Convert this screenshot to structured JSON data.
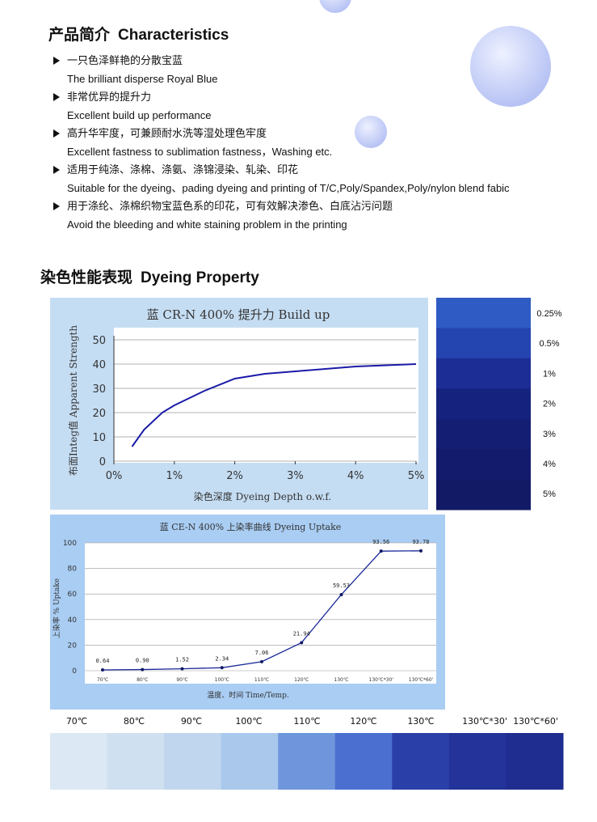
{
  "characteristics": {
    "title": "产品简介",
    "title_en": "Characteristics",
    "items": [
      {
        "cn": "一只色泽鲜艳的分散宝蓝",
        "en": "The brilliant disperse Royal Blue"
      },
      {
        "cn": "非常优异的提升力",
        "en": "Excellent build up performance"
      },
      {
        "cn": "高升华牢度，可兼顾耐水洗等湿处理色牢度",
        "en": "Excellent fastness to sublimation fastness，Washing etc."
      },
      {
        "cn": "适用于纯涤、涤棉、涤氨、涤锦浸染、轧染、印花",
        "en": "Suitable for the dyeing、pading dyeing and printing of T/C,Poly/Spandex,Poly/nylon blend fabic"
      },
      {
        "cn": "用于涤纶、涤棉织物宝蓝色系的印花，可有效解决渗色、白底沾污问题",
        "en": "Avoid the bleeding and white staining problem in the printing"
      }
    ]
  },
  "dyeing": {
    "title": "染色性能表现",
    "title_en": "Dyeing Property"
  },
  "chart_data": [
    {
      "type": "line",
      "title": "蓝 CR-N 400% 提升力 Build up",
      "y_label": "布面Integ值 Apparent Strength",
      "x_label": "染色深度 Dyeing Depth o.w.f.",
      "x": [
        0.3,
        0.5,
        0.8,
        1,
        1.5,
        2,
        2.5,
        3,
        4,
        5
      ],
      "series": [
        {
          "color": "#1a1aa8",
          "values": [
            6,
            13,
            20,
            23,
            29,
            34,
            36,
            37,
            39,
            40
          ]
        }
      ],
      "xlim": [
        0,
        5
      ],
      "xticks": [
        {
          "value": 0,
          "label": "0%"
        },
        {
          "value": 1,
          "label": "1%"
        },
        {
          "value": 2,
          "label": "2%"
        },
        {
          "value": 3,
          "label": "3%"
        },
        {
          "value": 4,
          "label": "4%"
        },
        {
          "value": 5,
          "label": "5%"
        }
      ],
      "ylim": [
        0,
        50
      ],
      "yticks": [
        0,
        10,
        20,
        30,
        40,
        50
      ],
      "grid": true
    },
    {
      "type": "line",
      "title": "蓝 CE-N 400% 上染率曲线 Dyeing Uptake",
      "y_label": "上染率 % Uptake",
      "x_label": "温度、时间 Time/Temp.",
      "categories": [
        "70℃",
        "80℃",
        "90℃",
        "100℃",
        "110℃",
        "120℃",
        "130℃",
        "130℃*30'",
        "130℃*60'"
      ],
      "series": [
        {
          "color": "#1a2a9a",
          "values": [
            0.64,
            0.9,
            1.52,
            2.34,
            7.06,
            21.94,
            59.53,
            93.56,
            93.78
          ],
          "value_labels": [
            "0.64",
            "0.90",
            "1.52",
            "2.34",
            "7.06",
            "21.94",
            "59.53",
            "93.56",
            "93.78"
          ]
        }
      ],
      "ylim": [
        0,
        100
      ],
      "yticks": [
        0,
        20,
        40,
        60,
        80,
        100
      ],
      "grid": true
    }
  ],
  "depth_swatches": {
    "labels": [
      "0.25%",
      "0.5%",
      "1%",
      "2%",
      "3%",
      "4%",
      "5%"
    ],
    "colors": [
      "#2f5cc4",
      "#2444b0",
      "#1c2d96",
      "#16237e",
      "#141f74",
      "#131c6c",
      "#121a66"
    ]
  },
  "uptake_swatches": {
    "colors": [
      "#dce8f3",
      "#cfe0f0",
      "#c0d6ee",
      "#a9c8ec",
      "#6f96dc",
      "#4a6fd0",
      "#2a3fa8",
      "#23339a",
      "#1f2d90"
    ]
  }
}
